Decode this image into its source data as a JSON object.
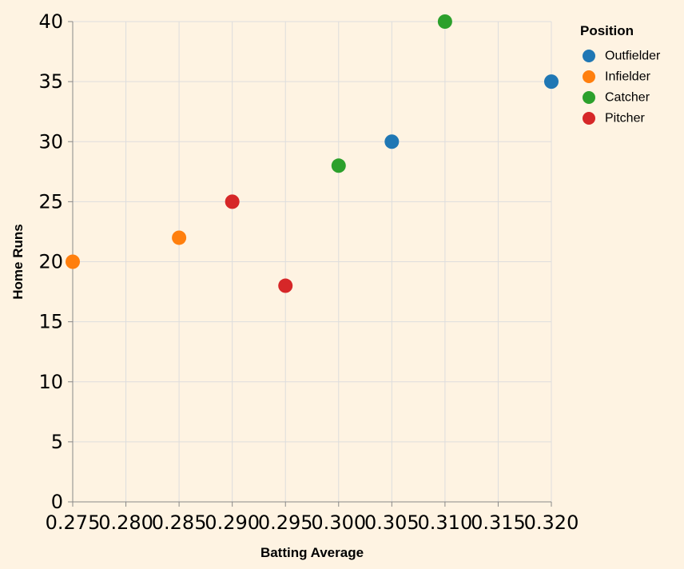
{
  "chart_data": {
    "type": "scatter",
    "title": "",
    "xlabel": "Batting Average",
    "ylabel": "Home Runs",
    "xlim": [
      0.275,
      0.32
    ],
    "ylim": [
      0,
      40
    ],
    "x_ticks": [
      0.275,
      0.28,
      0.285,
      0.29,
      0.295,
      0.3,
      0.305,
      0.31,
      0.315,
      0.32
    ],
    "x_tick_labels": [
      "0.275",
      "0.280",
      "0.285",
      "0.290",
      "0.295",
      "0.300",
      "0.305",
      "0.310",
      "0.315",
      "0.320"
    ],
    "y_ticks": [
      0,
      5,
      10,
      15,
      20,
      25,
      30,
      35,
      40
    ],
    "y_tick_labels": [
      "0",
      "5",
      "10",
      "15",
      "20",
      "25",
      "30",
      "35",
      "40"
    ],
    "grid": true,
    "legend": {
      "title": "Position",
      "placement": "top-right",
      "entries": [
        {
          "label": "Outfielder",
          "color": "#1f77b4"
        },
        {
          "label": "Infielder",
          "color": "#ff7f0e"
        },
        {
          "label": "Catcher",
          "color": "#2ca02c"
        },
        {
          "label": "Pitcher",
          "color": "#d62728"
        }
      ]
    },
    "series": [
      {
        "name": "Outfielder",
        "color": "#1f77b4",
        "points": [
          {
            "x": 0.305,
            "y": 30
          },
          {
            "x": 0.32,
            "y": 35
          }
        ]
      },
      {
        "name": "Infielder",
        "color": "#ff7f0e",
        "points": [
          {
            "x": 0.275,
            "y": 20
          },
          {
            "x": 0.285,
            "y": 22
          }
        ]
      },
      {
        "name": "Catcher",
        "color": "#2ca02c",
        "points": [
          {
            "x": 0.3,
            "y": 28
          },
          {
            "x": 0.31,
            "y": 40
          }
        ]
      },
      {
        "name": "Pitcher",
        "color": "#d62728",
        "points": [
          {
            "x": 0.29,
            "y": 25
          },
          {
            "x": 0.295,
            "y": 18
          }
        ]
      }
    ]
  },
  "style": {
    "background": "#fef3e2",
    "grid_color": "#dddddd",
    "axis_color": "#888888"
  }
}
